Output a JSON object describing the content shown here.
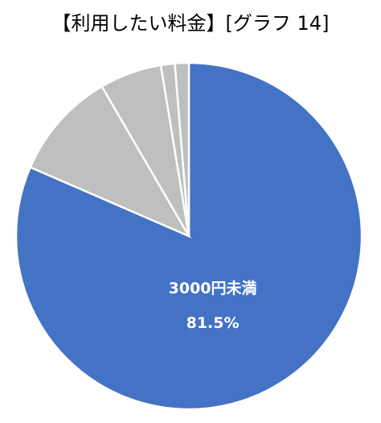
{
  "chart_data": {
    "type": "pie",
    "title": "【利用したい料金】[グラフ 14]",
    "categories": [
      "3000円未満",
      null,
      null,
      null,
      null
    ],
    "values": [
      81.5,
      10.1,
      5.8,
      1.3,
      1.3
    ],
    "value_labels": [
      "81.5%",
      null,
      null,
      null,
      null
    ],
    "colors": [
      "#4472c4",
      "#bfbfbf",
      "#bfbfbf",
      "#bfbfbf",
      "#bfbfbf"
    ]
  }
}
